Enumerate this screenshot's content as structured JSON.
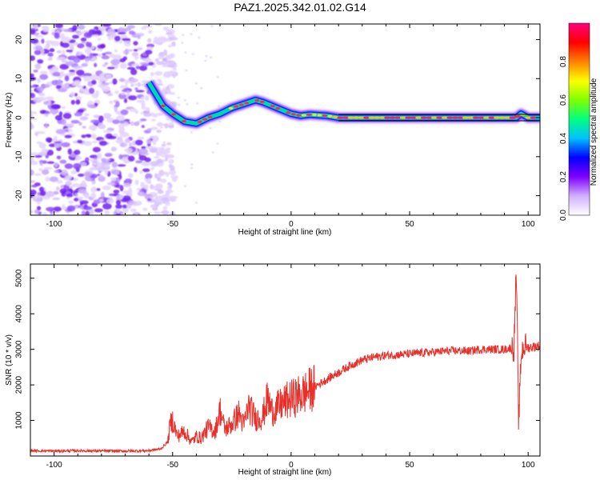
{
  "title": "PAZ1.2025.342.01.02.G14",
  "chart_data": [
    {
      "type": "heatmap",
      "title": "PAZ1.2025.342.01.02.G14",
      "xlabel": "Height of straight line (km)",
      "ylabel": "Frequency (Hz)",
      "xlim": [
        -110,
        105
      ],
      "ylim": [
        -25,
        24
      ],
      "xticks": [
        -100,
        -50,
        0,
        50,
        100
      ],
      "yticks": [
        -20,
        -10,
        0,
        10,
        20
      ],
      "colorbar": {
        "label": "Normalized spectral amplitude",
        "range": [
          0,
          1
        ],
        "ticks": [
          0.0,
          0.2,
          0.4,
          0.6,
          0.8
        ],
        "colors": [
          "#ffffff",
          "#d0b0ff",
          "#8000ff",
          "#0000ff",
          "#00c0ff",
          "#00ff80",
          "#80ff00",
          "#ffff00",
          "#ff8000",
          "#ff0000",
          "#ff0080"
        ]
      },
      "ridge": {
        "x": [
          -60,
          -57,
          -54,
          -50,
          -45,
          -40,
          -35,
          -30,
          -25,
          -20,
          -15,
          -12,
          -8,
          -4,
          0,
          4,
          8,
          15,
          20,
          40,
          60,
          80,
          95,
          97,
          100,
          105
        ],
        "y": [
          9,
          6,
          3,
          1,
          -1,
          -1.5,
          0,
          1,
          2.5,
          3.5,
          4.5,
          4,
          3,
          2,
          1,
          0.5,
          0.8,
          0.5,
          0,
          0,
          0,
          0,
          0,
          1,
          0,
          0
        ]
      },
      "noise_region_x": [
        -110,
        -55
      ]
    },
    {
      "type": "line",
      "xlabel": "Height of straight line (km)",
      "ylabel": "SNR (10 * v/v)",
      "xlim": [
        -110,
        105
      ],
      "ylim": [
        0,
        5400
      ],
      "xticks": [
        -100,
        -50,
        0,
        50,
        100
      ],
      "yticks": [
        1000,
        2000,
        3000,
        4000,
        5000
      ],
      "line_color": "#e8302a",
      "series": [
        {
          "name": "SNR",
          "x": [
            -110,
            -100,
            -90,
            -80,
            -70,
            -60,
            -55,
            -52,
            -51,
            -50,
            -48,
            -45,
            -42,
            -40,
            -38,
            -35,
            -32,
            -30,
            -28,
            -25,
            -22,
            -20,
            -18,
            -15,
            -12,
            -10,
            -8,
            -5,
            -2,
            0,
            5,
            10,
            15,
            20,
            25,
            30,
            35,
            40,
            45,
            50,
            55,
            60,
            65,
            70,
            75,
            80,
            85,
            90,
            94,
            95,
            96,
            97,
            98,
            100,
            105
          ],
          "y": [
            150,
            140,
            150,
            140,
            140,
            150,
            200,
            400,
            900,
            1000,
            550,
            700,
            400,
            550,
            500,
            800,
            700,
            1300,
            750,
            900,
            1200,
            850,
            1400,
            1050,
            1100,
            1600,
            1250,
            1400,
            1550,
            1600,
            1750,
            1950,
            2150,
            2350,
            2550,
            2700,
            2780,
            2830,
            2850,
            2870,
            2900,
            2920,
            2950,
            2960,
            2950,
            3000,
            3000,
            3000,
            3050,
            5200,
            900,
            2800,
            3100,
            3050,
            3100
          ]
        }
      ]
    }
  ]
}
